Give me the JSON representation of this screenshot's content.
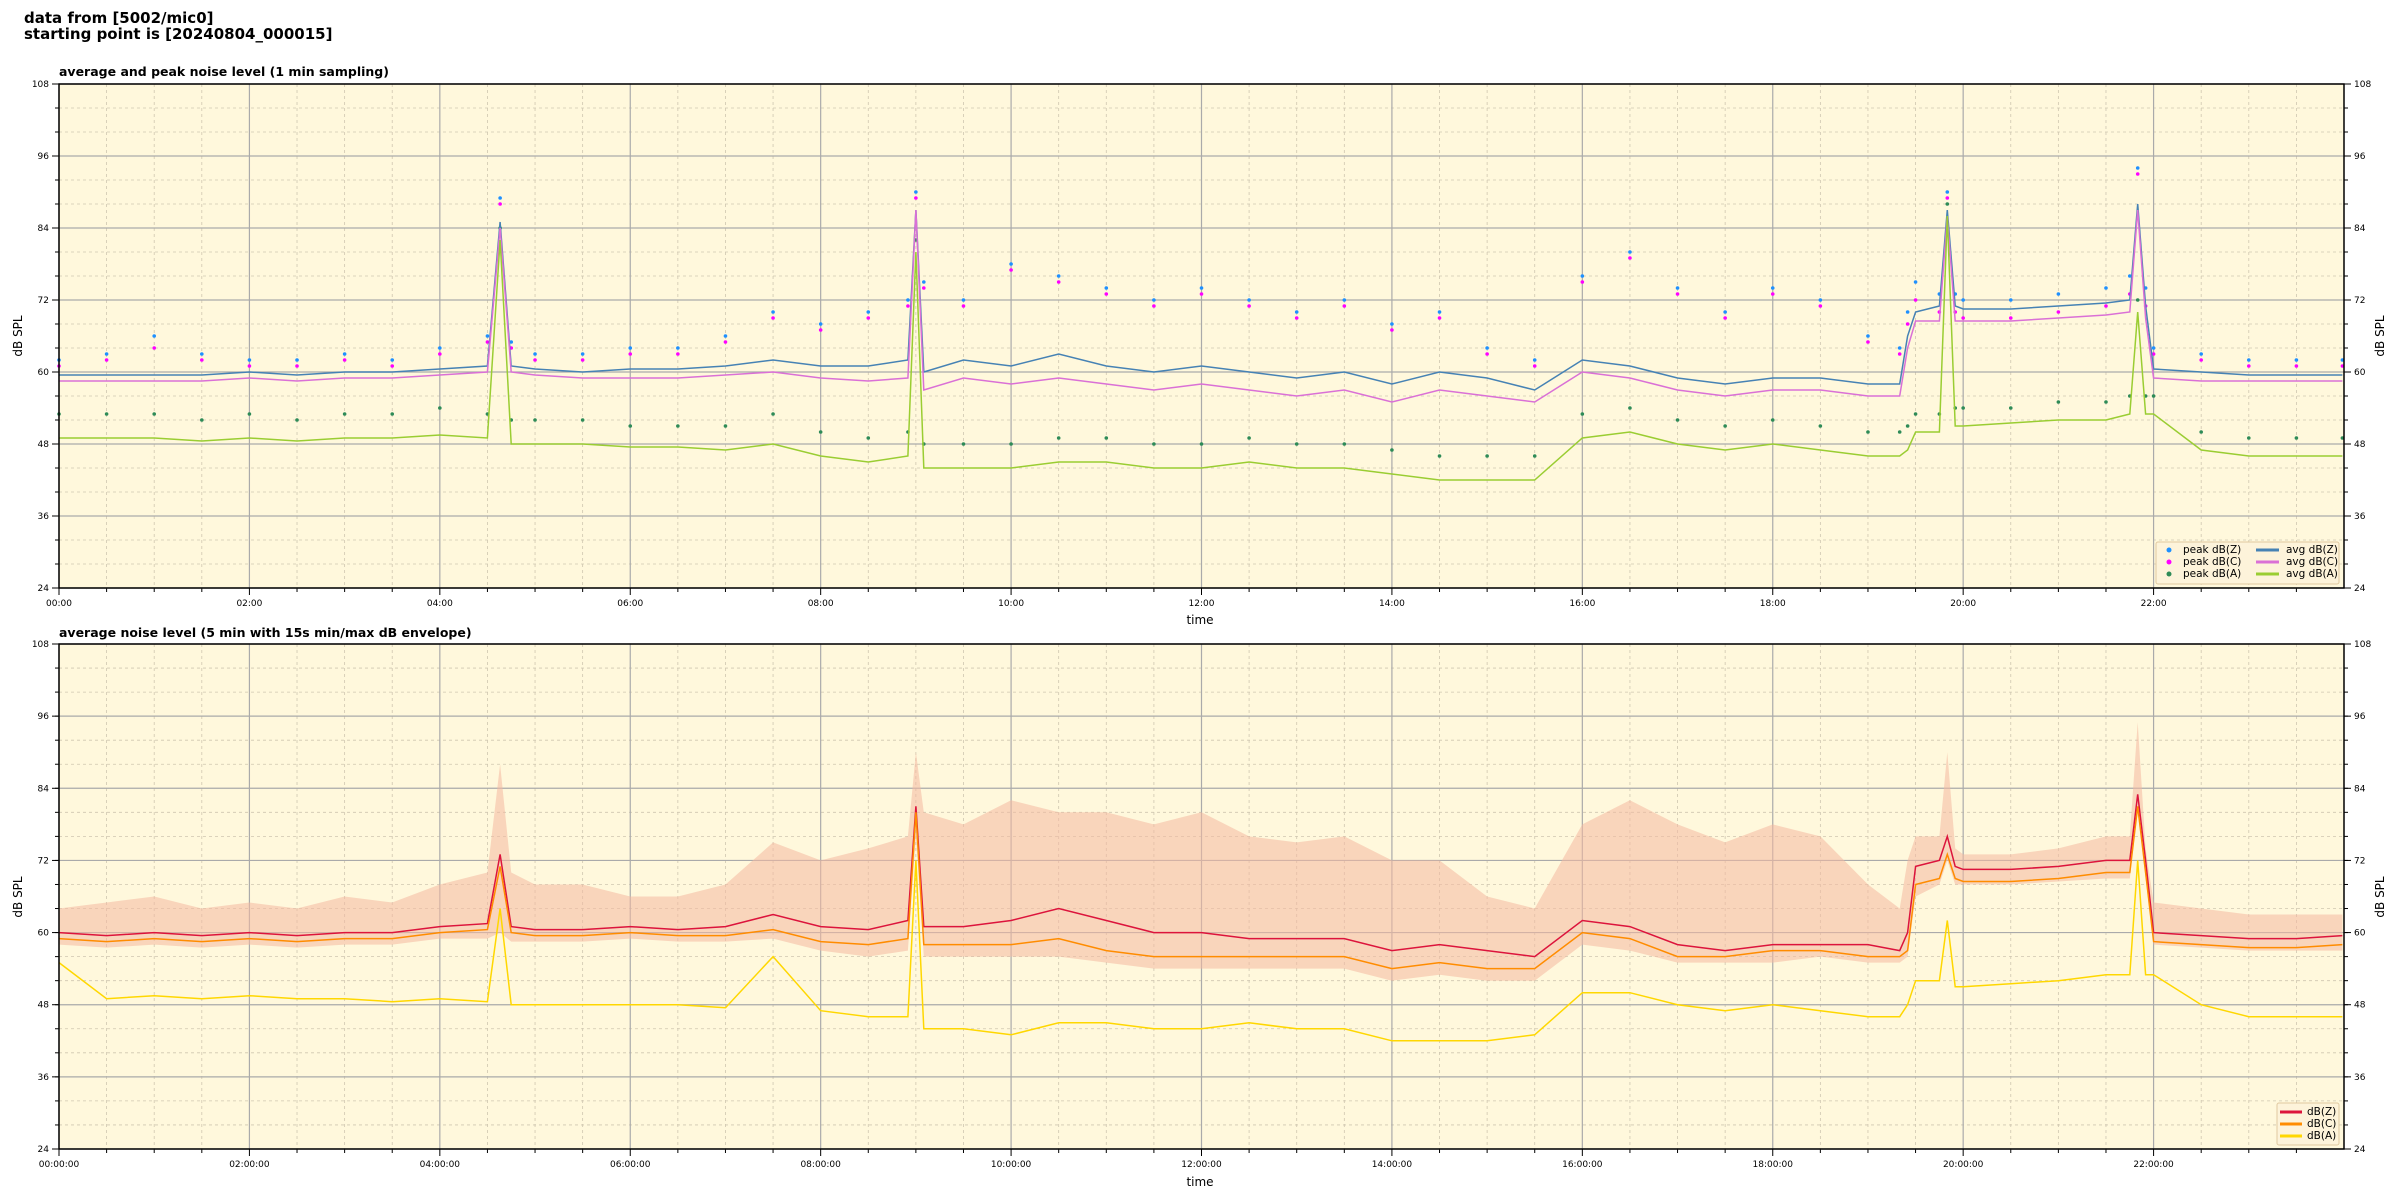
{
  "header": {
    "line1": "data from [5002/mic0]",
    "line2": "starting point is [20240804_000015]"
  },
  "colors": {
    "plot_background": "#fff8dc",
    "peak_z": "#1e90ff",
    "peak_c": "#ff00ff",
    "peak_a": "#2e8b57",
    "avg_z": "#4682b4",
    "avg_c": "#da70d6",
    "avg_a": "#9acd32",
    "db_z": "#dc143c",
    "db_c": "#ff8c00",
    "db_a": "#ffd700",
    "envelope": "#f4b8a0"
  },
  "chart_data": [
    {
      "type": "line",
      "title": "average and peak noise level (1 min sampling)",
      "xlabel": "time",
      "ylabel": "dB SPL",
      "ylim": [
        24,
        108
      ],
      "yticks": [
        "24",
        "36",
        "48",
        "60",
        "72",
        "84",
        "96",
        "108"
      ],
      "xticks": [
        "00:00",
        "02:00",
        "04:00",
        "06:00",
        "08:00",
        "10:00",
        "12:00",
        "14:00",
        "16:00",
        "18:00",
        "20:00",
        "22:00"
      ],
      "xlim": [
        "00:00",
        "24:00"
      ],
      "grid": true,
      "legend_position": "bottom-right",
      "x": [
        "00:00",
        "00:30",
        "01:00",
        "01:30",
        "02:00",
        "02:30",
        "03:00",
        "03:30",
        "04:00",
        "04:30",
        "04:38",
        "04:45",
        "05:00",
        "05:30",
        "06:00",
        "06:30",
        "07:00",
        "07:30",
        "08:00",
        "08:30",
        "08:55",
        "09:00",
        "09:05",
        "09:30",
        "10:00",
        "10:30",
        "11:00",
        "11:30",
        "12:00",
        "12:30",
        "13:00",
        "13:30",
        "14:00",
        "14:30",
        "15:00",
        "15:30",
        "16:00",
        "16:30",
        "17:00",
        "17:30",
        "18:00",
        "18:30",
        "19:00",
        "19:20",
        "19:25",
        "19:30",
        "19:45",
        "19:50",
        "19:55",
        "20:00",
        "20:30",
        "21:00",
        "21:30",
        "21:45",
        "21:50",
        "21:55",
        "22:00",
        "22:30",
        "23:00",
        "23:30",
        "23:59"
      ],
      "series": [
        {
          "name": "peak dB(Z)",
          "kind": "scatter",
          "color_key": "peak_z",
          "values": [
            62,
            63,
            66,
            63,
            62,
            62,
            63,
            62,
            64,
            66,
            89,
            65,
            63,
            63,
            64,
            64,
            66,
            70,
            68,
            70,
            72,
            90,
            75,
            72,
            78,
            76,
            74,
            72,
            74,
            72,
            70,
            72,
            68,
            70,
            64,
            62,
            76,
            80,
            74,
            70,
            74,
            72,
            66,
            64,
            70,
            75,
            73,
            90,
            73,
            72,
            72,
            73,
            74,
            76,
            94,
            74,
            64,
            63,
            62,
            62,
            62
          ]
        },
        {
          "name": "peak dB(C)",
          "kind": "scatter",
          "color_key": "peak_c",
          "values": [
            61,
            62,
            64,
            62,
            61,
            61,
            62,
            61,
            63,
            65,
            88,
            64,
            62,
            62,
            63,
            63,
            65,
            69,
            67,
            69,
            71,
            89,
            74,
            71,
            77,
            75,
            73,
            71,
            73,
            71,
            69,
            71,
            67,
            69,
            63,
            61,
            75,
            79,
            73,
            69,
            73,
            71,
            65,
            63,
            68,
            72,
            70,
            89,
            70,
            69,
            69,
            70,
            71,
            73,
            93,
            71,
            63,
            62,
            61,
            61,
            61
          ]
        },
        {
          "name": "peak dB(A)",
          "kind": "scatter",
          "color_key": "peak_a",
          "values": [
            53,
            53,
            53,
            52,
            53,
            52,
            53,
            53,
            54,
            53,
            84,
            52,
            52,
            52,
            51,
            51,
            51,
            53,
            50,
            49,
            50,
            82,
            48,
            48,
            48,
            49,
            49,
            48,
            48,
            49,
            48,
            48,
            47,
            46,
            46,
            46,
            53,
            54,
            52,
            51,
            52,
            51,
            50,
            50,
            51,
            53,
            53,
            88,
            54,
            54,
            54,
            55,
            55,
            56,
            72,
            56,
            56,
            50,
            49,
            49,
            49
          ]
        },
        {
          "name": "avg dB(Z)",
          "kind": "line",
          "color_key": "avg_z",
          "values": [
            59.5,
            59.5,
            59.5,
            59.5,
            60,
            59.5,
            60,
            60,
            60.5,
            61,
            85,
            61,
            60.5,
            60,
            60.5,
            60.5,
            61,
            62,
            61,
            61,
            62,
            87,
            60,
            62,
            61,
            63,
            61,
            60,
            61,
            60,
            59,
            60,
            58,
            60,
            59,
            57,
            62,
            61,
            59,
            58,
            59,
            59,
            58,
            58,
            66,
            70,
            71,
            87,
            71,
            70.5,
            70.5,
            71,
            71.5,
            72,
            88,
            71,
            60.5,
            60,
            59.5,
            59.5,
            59.5
          ]
        },
        {
          "name": "avg dB(C)",
          "kind": "line",
          "color_key": "avg_c",
          "values": [
            58.5,
            58.5,
            58.5,
            58.5,
            59,
            58.5,
            59,
            59,
            59.5,
            60,
            84,
            60,
            59.5,
            59,
            59,
            59,
            59.5,
            60,
            59,
            58.5,
            59,
            87,
            57,
            59,
            58,
            59,
            58,
            57,
            58,
            57,
            56,
            57,
            55,
            57,
            56,
            55,
            60,
            59,
            57,
            56,
            57,
            57,
            56,
            56,
            64,
            68.5,
            68.5,
            86,
            68.5,
            68.5,
            68.5,
            69,
            69.5,
            70,
            87,
            69,
            59,
            58.5,
            58.5,
            58.5,
            58.5
          ]
        },
        {
          "name": "avg dB(A)",
          "kind": "line",
          "color_key": "avg_a",
          "values": [
            49,
            49,
            49,
            48.5,
            49,
            48.5,
            49,
            49,
            49.5,
            49,
            82,
            48,
            48,
            48,
            47.5,
            47.5,
            47,
            48,
            46,
            45,
            46,
            80,
            44,
            44,
            44,
            45,
            45,
            44,
            44,
            45,
            44,
            44,
            43,
            42,
            42,
            42,
            49,
            50,
            48,
            47,
            48,
            47,
            46,
            46,
            47,
            50,
            50,
            86,
            51,
            51,
            51.5,
            52,
            52,
            53,
            70,
            53,
            53,
            47,
            46,
            46,
            46
          ]
        }
      ]
    },
    {
      "type": "line",
      "title": "average noise level (5 min with 15s min/max dB envelope)",
      "xlabel": "time",
      "ylabel": "dB SPL",
      "ylim": [
        24,
        108
      ],
      "yticks": [
        "24",
        "36",
        "48",
        "60",
        "72",
        "84",
        "96",
        "108"
      ],
      "xticks": [
        "00:00:00",
        "02:00:00",
        "04:00:00",
        "06:00:00",
        "08:00:00",
        "10:00:00",
        "12:00:00",
        "14:00:00",
        "16:00:00",
        "18:00:00",
        "20:00:00",
        "22:00:00"
      ],
      "xlim": [
        "00:00",
        "24:00"
      ],
      "grid": true,
      "legend_position": "bottom-right",
      "x": [
        "00:00",
        "00:30",
        "01:00",
        "01:30",
        "02:00",
        "02:30",
        "03:00",
        "03:30",
        "04:00",
        "04:30",
        "04:38",
        "04:45",
        "05:00",
        "05:30",
        "06:00",
        "06:30",
        "07:00",
        "07:30",
        "08:00",
        "08:30",
        "08:55",
        "09:00",
        "09:05",
        "09:30",
        "10:00",
        "10:30",
        "11:00",
        "11:30",
        "12:00",
        "12:30",
        "13:00",
        "13:30",
        "14:00",
        "14:30",
        "15:00",
        "15:30",
        "16:00",
        "16:30",
        "17:00",
        "17:30",
        "18:00",
        "18:30",
        "19:00",
        "19:20",
        "19:25",
        "19:30",
        "19:45",
        "19:50",
        "19:55",
        "20:00",
        "20:30",
        "21:00",
        "21:30",
        "21:45",
        "21:50",
        "21:55",
        "22:00",
        "22:30",
        "23:00",
        "23:30",
        "23:59"
      ],
      "envelope": {
        "max": [
          64,
          65,
          66,
          64,
          65,
          64,
          66,
          65,
          68,
          70,
          88,
          70,
          68,
          68,
          66,
          66,
          68,
          75,
          72,
          74,
          76,
          90,
          80,
          78,
          82,
          80,
          80,
          78,
          80,
          76,
          75,
          76,
          72,
          72,
          66,
          64,
          78,
          82,
          78,
          75,
          78,
          76,
          68,
          64,
          72,
          76,
          76,
          90,
          74,
          73,
          73,
          74,
          76,
          76,
          95,
          74,
          65,
          64,
          63,
          63,
          63
        ],
        "min": [
          58,
          57.5,
          58,
          57.5,
          58,
          57.5,
          58,
          58,
          59,
          59,
          60,
          58.5,
          58.5,
          58.5,
          59,
          58.5,
          58.5,
          59,
          57,
          56,
          57,
          76,
          56,
          56,
          56,
          56,
          55,
          54,
          54,
          54,
          54,
          54,
          52,
          53,
          52,
          52,
          58,
          57,
          55,
          55,
          55,
          56,
          55,
          55,
          56,
          66,
          68,
          72,
          68,
          68,
          68,
          68.5,
          69,
          69,
          80,
          69,
          58,
          57.5,
          57,
          57,
          57
        ]
      },
      "series": [
        {
          "name": "dB(Z)",
          "kind": "line",
          "color_key": "db_z",
          "values": [
            60,
            59.5,
            60,
            59.5,
            60,
            59.5,
            60,
            60,
            61,
            61.5,
            73,
            61,
            60.5,
            60.5,
            61,
            60.5,
            61,
            63,
            61,
            60.5,
            62,
            81,
            61,
            61,
            62,
            64,
            62,
            60,
            60,
            59,
            59,
            59,
            57,
            58,
            57,
            56,
            62,
            61,
            58,
            57,
            58,
            58,
            58,
            57,
            60,
            71,
            72,
            76,
            71,
            70.5,
            70.5,
            71,
            72,
            72,
            83,
            72,
            60,
            59.5,
            59,
            59,
            59.5
          ]
        },
        {
          "name": "dB(C)",
          "kind": "line",
          "color_key": "db_c",
          "values": [
            59,
            58.5,
            59,
            58.5,
            59,
            58.5,
            59,
            59,
            60,
            60.5,
            71,
            60,
            59.5,
            59.5,
            60,
            59.5,
            59.5,
            60.5,
            58.5,
            58,
            59,
            80,
            58,
            58,
            58,
            59,
            57,
            56,
            56,
            56,
            56,
            56,
            54,
            55,
            54,
            54,
            60,
            59,
            56,
            56,
            57,
            57,
            56,
            56,
            57,
            68,
            69,
            73,
            69,
            68.5,
            68.5,
            69,
            70,
            70,
            81,
            70,
            58.5,
            58,
            57.5,
            57.5,
            58
          ]
        },
        {
          "name": "dB(A)",
          "kind": "line",
          "color_key": "db_a",
          "values": [
            55,
            49,
            49.5,
            49,
            49.5,
            49,
            49,
            48.5,
            49,
            48.5,
            64,
            48,
            48,
            48,
            48,
            48,
            47.5,
            56,
            47,
            46,
            46,
            72,
            44,
            44,
            43,
            45,
            45,
            44,
            44,
            45,
            44,
            44,
            42,
            42,
            42,
            43,
            50,
            50,
            48,
            47,
            48,
            47,
            46,
            46,
            48,
            52,
            52,
            62,
            51,
            51,
            51.5,
            52,
            53,
            53,
            72,
            53,
            53,
            48,
            46,
            46,
            46
          ]
        }
      ]
    }
  ]
}
